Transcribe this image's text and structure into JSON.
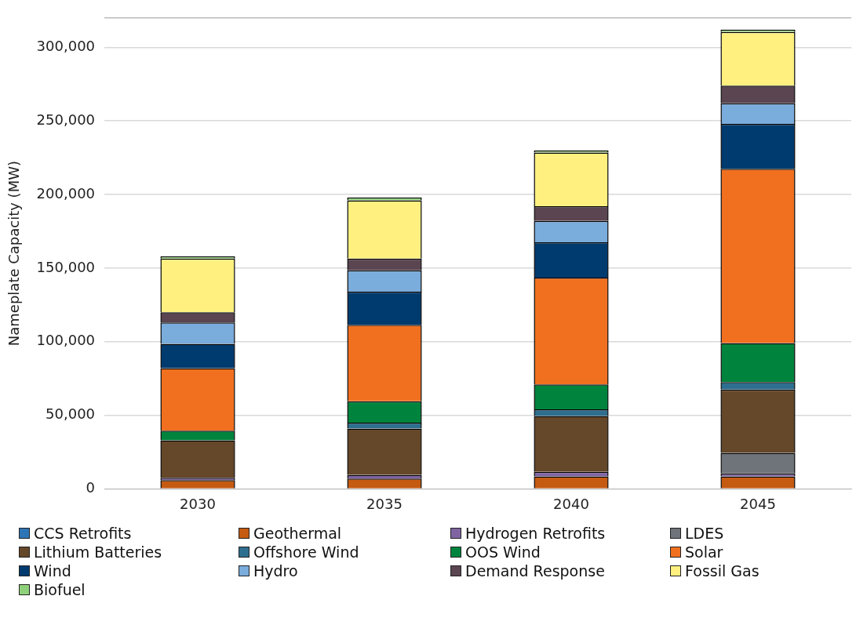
{
  "chart_data": {
    "type": "bar",
    "stacked": true,
    "ylabel": "Nameplate Capacity (MW)",
    "categories": [
      "2030",
      "2035",
      "2040",
      "2045"
    ],
    "ylim": [
      0,
      320000
    ],
    "yticks": [
      0,
      {
        "value": 50000,
        "label": "50,000"
      },
      {
        "value": 100000,
        "label": "100,000"
      },
      {
        "value": 150000,
        "label": "150,000"
      },
      {
        "value": 200000,
        "label": "200,000"
      },
      {
        "value": 250000,
        "label": "250,000"
      },
      {
        "value": 300000,
        "label": "300,000"
      }
    ],
    "grid": "y",
    "legend": "bottom",
    "series": [
      {
        "name": "CCS Retrofits",
        "color": "#2e75b6",
        "values": [
          0,
          0,
          0,
          0
        ]
      },
      {
        "name": "Geothermal",
        "color": "#c55a11",
        "values": [
          6000,
          7000,
          8500,
          8500
        ]
      },
      {
        "name": "Hydrogen Retrofits",
        "color": "#8064a2",
        "values": [
          1500,
          2500,
          3000,
          2000
        ]
      },
      {
        "name": "LDES",
        "color": "#6f737a",
        "values": [
          0,
          0,
          0,
          14000
        ]
      },
      {
        "name": "Lithium Batteries",
        "color": "#654729",
        "values": [
          25500,
          31500,
          38000,
          43000
        ]
      },
      {
        "name": "Offshore Wind",
        "color": "#2e6e8e",
        "values": [
          0,
          4000,
          4500,
          5000
        ]
      },
      {
        "name": "OOS Wind",
        "color": "#00843d",
        "values": [
          6500,
          14500,
          17000,
          26500
        ]
      },
      {
        "name": "Solar",
        "color": "#f07020",
        "values": [
          42500,
          52000,
          72500,
          118500
        ]
      },
      {
        "name": "Wind",
        "color": "#003b6f",
        "values": [
          16500,
          22500,
          24000,
          30500
        ]
      },
      {
        "name": "Hydro",
        "color": "#7aacdc",
        "values": [
          14500,
          14500,
          14500,
          14000
        ]
      },
      {
        "name": "Demand Response",
        "color": "#5a4550",
        "values": [
          7000,
          8000,
          10000,
          12000
        ]
      },
      {
        "name": "Fossil Gas",
        "color": "#fff080",
        "values": [
          36500,
          39500,
          36500,
          36500
        ]
      },
      {
        "name": "Biofuel",
        "color": "#8fd17a",
        "values": [
          1500,
          2000,
          1500,
          1500
        ]
      }
    ]
  }
}
